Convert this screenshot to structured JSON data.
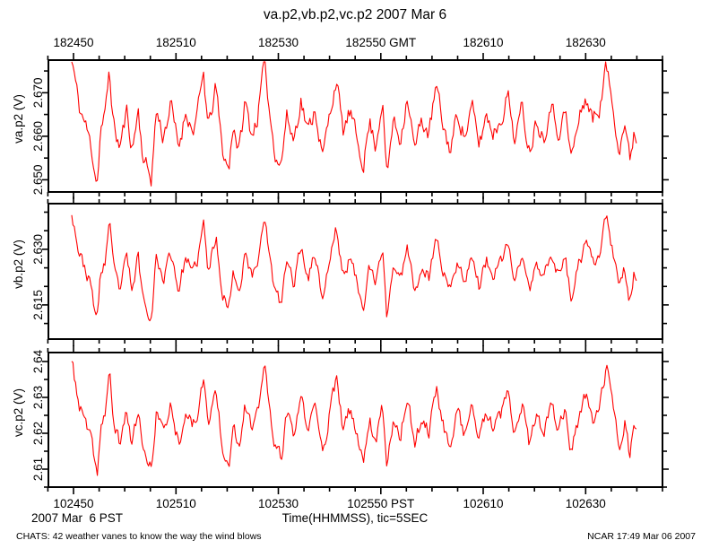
{
  "title": "va.p2,vb.p2,vc.p2 2007 Mar 6",
  "captions": {
    "date_left": "2007 Mar  6 PST",
    "xlabel": "Time(HHMMSS), tic=5SEC"
  },
  "footer": {
    "left": "CHATS: 42 weather vanes to know the way the wind blows",
    "right": "NCAR 17:49 Mar 06 2007"
  },
  "colors": {
    "trace": "#ff0000",
    "axis": "#000000",
    "background": "#ffffff"
  },
  "chart_data": {
    "type": "line",
    "title": "va.p2,vb.p2,vc.p2 2007 Mar 6",
    "xlabel": "Time(HHMMSS), tic=5SEC",
    "x_axis": {
      "tic_seconds": 5,
      "range_seconds": [
        -5,
        115
      ],
      "major_ticks_seconds": [
        0,
        20,
        40,
        60,
        80,
        100
      ],
      "top_tick_labels": [
        "182450",
        "182510",
        "182530",
        "182550 GMT",
        "182610",
        "182630"
      ],
      "bottom_tick_labels": [
        "102450",
        "102510",
        "102530",
        "102550 PST",
        "102610",
        "102630"
      ],
      "top_timezone": "GMT",
      "bottom_timezone": "PST"
    },
    "data_range_seconds": [
      -0.35,
      110
    ],
    "samples_per_second": 4,
    "panels": [
      {
        "name": "va.p2",
        "ylabel": "va.p2 (V)",
        "ymin": 2.6472,
        "ymax": 2.6775,
        "ytick_step": 0.005,
        "labeled_ticks": [
          {
            "value": 2.65,
            "label": "2.650"
          },
          {
            "value": 2.66,
            "label": "2.660"
          },
          {
            "value": 2.67,
            "label": "2.670"
          }
        ],
        "series_min": 2.6485,
        "series_max": 2.678,
        "noise_amplitude": 0.0018,
        "noise_seed": 11
      },
      {
        "name": "vb.p2",
        "ylabel": "vb.p2 (V)",
        "ymin": 2.6058,
        "ymax": 2.6423,
        "ytick_step": 0.005,
        "labeled_ticks": [
          {
            "value": 2.615,
            "label": "2.615"
          },
          {
            "value": 2.63,
            "label": "2.630"
          }
        ],
        "series_min": 2.61,
        "series_max": 2.6405,
        "noise_amplitude": 0.0016,
        "noise_seed": 23
      },
      {
        "name": "vc.p2",
        "ylabel": "vc.p2 (V)",
        "ymin": 2.605,
        "ymax": 2.6425,
        "ytick_step": 0.005,
        "labeled_ticks": [
          {
            "value": 2.61,
            "label": "2.61"
          },
          {
            "value": 2.62,
            "label": "2.62"
          },
          {
            "value": 2.63,
            "label": "2.63"
          },
          {
            "value": 2.64,
            "label": "2.64"
          }
        ],
        "series_min": 2.6075,
        "series_max": 2.64,
        "noise_amplitude": 0.0018,
        "noise_seed": 37
      }
    ],
    "shape_keypoints": [
      [
        -0.35,
        1.0
      ],
      [
        0.5,
        0.78
      ],
      [
        1.2,
        0.6
      ],
      [
        2.2,
        0.5
      ],
      [
        3.4,
        0.32
      ],
      [
        4.6,
        0.02
      ],
      [
        5.3,
        0.45
      ],
      [
        6.2,
        0.55
      ],
      [
        7.0,
        0.92
      ],
      [
        7.8,
        0.48
      ],
      [
        9.0,
        0.3
      ],
      [
        10.4,
        0.58
      ],
      [
        11.5,
        0.28
      ],
      [
        12.6,
        0.6
      ],
      [
        13.6,
        0.22
      ],
      [
        15.2,
        0.06
      ],
      [
        16.2,
        0.6
      ],
      [
        17.5,
        0.38
      ],
      [
        19.0,
        0.64
      ],
      [
        20.5,
        0.3
      ],
      [
        22.0,
        0.6
      ],
      [
        23.2,
        0.42
      ],
      [
        24.2,
        0.56
      ],
      [
        25.4,
        0.88
      ],
      [
        26.3,
        0.44
      ],
      [
        27.8,
        0.78
      ],
      [
        29.0,
        0.3
      ],
      [
        30.3,
        0.12
      ],
      [
        31.2,
        0.5
      ],
      [
        32.3,
        0.26
      ],
      [
        33.5,
        0.66
      ],
      [
        34.8,
        0.4
      ],
      [
        36.0,
        0.55
      ],
      [
        37.3,
        1.0
      ],
      [
        38.2,
        0.6
      ],
      [
        39.3,
        0.28
      ],
      [
        40.5,
        0.16
      ],
      [
        41.6,
        0.55
      ],
      [
        43.0,
        0.36
      ],
      [
        44.4,
        0.68
      ],
      [
        45.8,
        0.42
      ],
      [
        47.2,
        0.62
      ],
      [
        48.6,
        0.22
      ],
      [
        50.0,
        0.55
      ],
      [
        51.3,
        0.85
      ],
      [
        52.6,
        0.42
      ],
      [
        54.0,
        0.58
      ],
      [
        55.4,
        0.35
      ],
      [
        56.6,
        0.18
      ],
      [
        57.8,
        0.5
      ],
      [
        59.0,
        0.32
      ],
      [
        60.3,
        0.68
      ],
      [
        61.2,
        0.06
      ],
      [
        62.4,
        0.52
      ],
      [
        63.8,
        0.36
      ],
      [
        65.2,
        0.72
      ],
      [
        66.6,
        0.28
      ],
      [
        68.0,
        0.52
      ],
      [
        69.4,
        0.4
      ],
      [
        70.8,
        0.78
      ],
      [
        72.2,
        0.46
      ],
      [
        73.6,
        0.28
      ],
      [
        75.0,
        0.58
      ],
      [
        76.4,
        0.38
      ],
      [
        77.8,
        0.62
      ],
      [
        79.2,
        0.32
      ],
      [
        80.6,
        0.56
      ],
      [
        82.0,
        0.42
      ],
      [
        83.4,
        0.52
      ],
      [
        84.8,
        0.72
      ],
      [
        86.2,
        0.36
      ],
      [
        87.6,
        0.62
      ],
      [
        89.0,
        0.28
      ],
      [
        90.4,
        0.52
      ],
      [
        91.8,
        0.38
      ],
      [
        93.2,
        0.66
      ],
      [
        94.6,
        0.42
      ],
      [
        96.0,
        0.58
      ],
      [
        97.2,
        0.22
      ],
      [
        98.6,
        0.5
      ],
      [
        100.0,
        0.7
      ],
      [
        101.4,
        0.52
      ],
      [
        102.8,
        0.62
      ],
      [
        104.0,
        0.95
      ],
      [
        104.8,
        0.75
      ],
      [
        105.6,
        0.55
      ],
      [
        106.6,
        0.3
      ],
      [
        107.6,
        0.5
      ],
      [
        108.6,
        0.2
      ],
      [
        109.4,
        0.42
      ],
      [
        110.0,
        0.38
      ]
    ]
  }
}
